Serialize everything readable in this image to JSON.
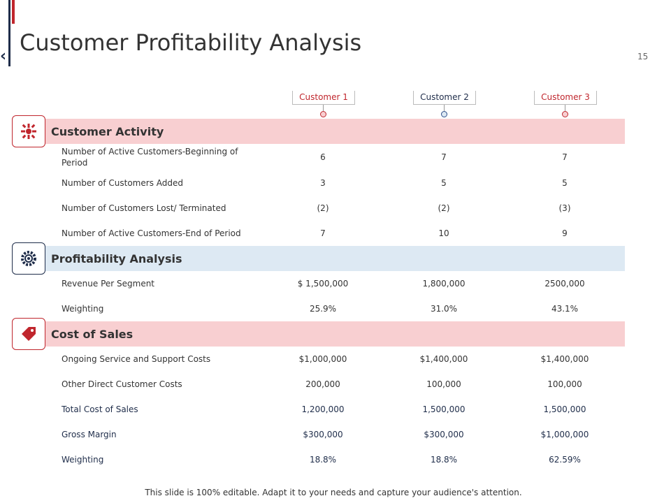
{
  "header": {
    "title": "Customer Profitability Analysis",
    "page_number": "15"
  },
  "table": {
    "columns": [
      "Customer 1",
      "Customer 2",
      "Customer 3"
    ],
    "sections": [
      {
        "title": "Customer Activity",
        "rows": [
          [
            "Number of Active Customers-Beginning of Period",
            "6",
            "7",
            "7"
          ],
          [
            "Number of Customers Added",
            "3",
            "5",
            "5"
          ],
          [
            "Number of Customers Lost/ Terminated",
            "(2)",
            "(2)",
            "(3)"
          ],
          [
            "Number of Active Customers-End of Period",
            "7",
            "10",
            "9"
          ]
        ]
      },
      {
        "title": "Profitability Analysis",
        "rows": [
          [
            "Revenue Per Segment",
            "$ 1,500,000",
            "1,800,000",
            "2500,000"
          ],
          [
            "Weighting",
            "25.9%",
            "31.0%",
            "43.1%"
          ]
        ]
      },
      {
        "title": "Cost of Sales",
        "rows": [
          [
            "Ongoing Service and Support Costs",
            "$1,000,000",
            "$1,400,000",
            "$1,400,000"
          ],
          [
            "Other Direct Customer Costs",
            "200,000",
            "100,000",
            "100,000"
          ],
          [
            "Total Cost of Sales",
            "1,200,000",
            "1,500,000",
            "1,500,000"
          ],
          [
            "Gross Margin",
            "$300,000",
            "$300,000",
            "$1,000,000"
          ],
          [
            "Weighting",
            "18.8%",
            "18.8%",
            "62.59%"
          ]
        ]
      }
    ]
  },
  "footer": {
    "text": "This slide is 100% editable. Adapt it to your needs and capture your audience's attention."
  }
}
